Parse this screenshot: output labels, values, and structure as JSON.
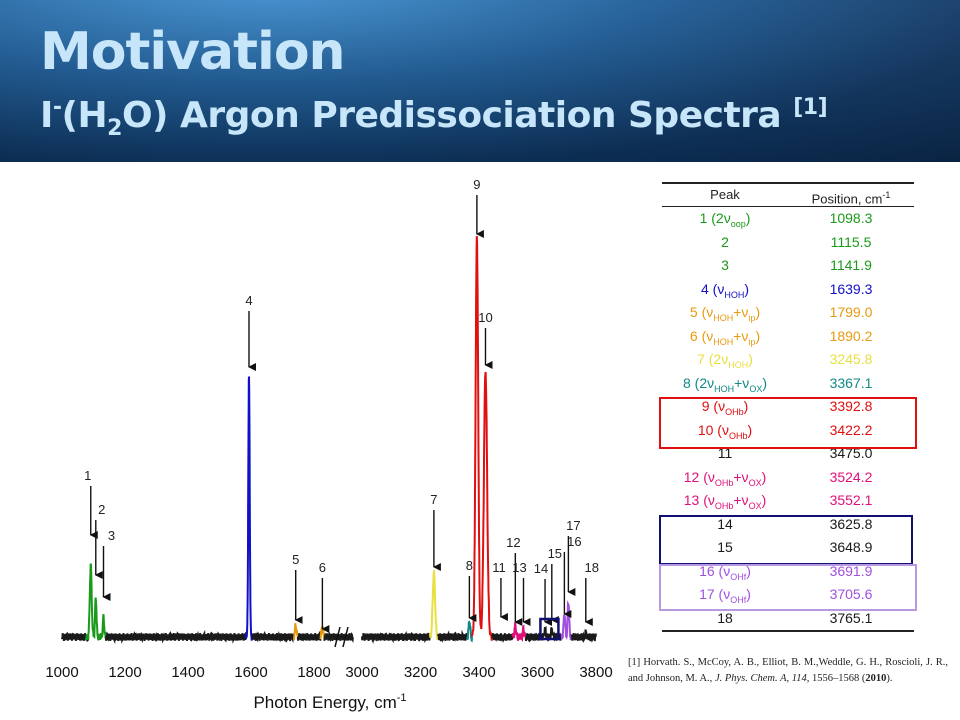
{
  "header": {
    "title": "Motivation",
    "subtitle_ion": "I",
    "subtitle_charge": "-",
    "subtitle_paren_open": "(H",
    "subtitle_sub": "2",
    "subtitle_paren_close": "O) Argon Predissociation Spectra ",
    "subtitle_ref": "[1]"
  },
  "colors": {
    "header_bg": "#1c5b96",
    "title_text": "#c8e6fa",
    "green": "#1a9a1a",
    "blue": "#1010c8",
    "orange": "#e89a10",
    "yellow": "#e8e040",
    "teal": "#118888",
    "red": "#e01010",
    "pink": "#e0107a",
    "purple": "#a050e0",
    "navy": "#101070",
    "black": "#1a1a1a"
  },
  "table": {
    "header": [
      "Peak",
      "Position, cm"
    ],
    "header_sup": "-1",
    "rows": [
      {
        "peak": "1 (2ν",
        "sub": "oop",
        "tail": ")",
        "pos": "1098.3",
        "color": "#1a9a1a"
      },
      {
        "peak": "2",
        "sub": "",
        "tail": "",
        "pos": "1115.5",
        "color": "#1a9a1a"
      },
      {
        "peak": "3",
        "sub": "",
        "tail": "",
        "pos": "1141.9",
        "color": "#1a9a1a"
      },
      {
        "peak": "4 (ν",
        "sub": "HOH",
        "tail": ")",
        "pos": "1639.3",
        "color": "#1010c8"
      },
      {
        "peak": "5 (ν",
        "sub": "HOH",
        "tail": "+ν",
        "sub2": "ip",
        "tail2": ")",
        "pos": "1799.0",
        "color": "#e89a10"
      },
      {
        "peak": "6 (ν",
        "sub": "HOH",
        "tail": "+ν",
        "sub2": "ip",
        "tail2": ")",
        "pos": "1890.2",
        "color": "#e89a10"
      },
      {
        "peak": "7 (2ν",
        "sub": "HOH",
        "tail": ")",
        "pos": "3245.8",
        "color": "#e8e040"
      },
      {
        "peak": "8 (2ν",
        "sub": "HOH",
        "tail": "+ν",
        "sub2": "OX",
        "tail2": ")",
        "pos": "3367.1",
        "color": "#118888"
      },
      {
        "peak": "9 (ν",
        "sub": "OHb",
        "tail": ")",
        "pos": "3392.8",
        "color": "#e01010"
      },
      {
        "peak": "10 (ν",
        "sub": "OHb",
        "tail": ")",
        "pos": "3422.2",
        "color": "#e01010"
      },
      {
        "peak": "11",
        "sub": "",
        "tail": "",
        "pos": "3475.0",
        "color": "#1a1a1a"
      },
      {
        "peak": "12 (ν",
        "sub": "OHb",
        "tail": "+ν",
        "sub2": "OX",
        "tail2": ")",
        "pos": "3524.2",
        "color": "#e0107a"
      },
      {
        "peak": "13 (ν",
        "sub": "OHb",
        "tail": "+ν",
        "sub2": "OX",
        "tail2": ")",
        "pos": "3552.1",
        "color": "#e0107a"
      },
      {
        "peak": "14",
        "sub": "",
        "tail": "",
        "pos": "3625.8",
        "color": "#1a1a1a"
      },
      {
        "peak": "15",
        "sub": "",
        "tail": "",
        "pos": "3648.9",
        "color": "#1a1a1a"
      },
      {
        "peak": "16 (ν",
        "sub": "OHf",
        "tail": ")",
        "pos": "3691.9",
        "color": "#a050e0"
      },
      {
        "peak": "17 (ν",
        "sub": "OHf",
        "tail": ")",
        "pos": "3705.6",
        "color": "#a050e0"
      },
      {
        "peak": "18",
        "sub": "",
        "tail": "",
        "pos": "3765.1",
        "color": "#1a1a1a"
      }
    ]
  },
  "chart_data": {
    "type": "line",
    "xlabel": "Photon Energy, cm",
    "xlabel_sup": "-1",
    "x_ticks_left": [
      1000,
      1200,
      1400,
      1600,
      1800
    ],
    "x_ticks_right": [
      3000,
      3200,
      3400,
      3600,
      3800
    ],
    "xlim_left": [
      1000,
      1900
    ],
    "xlim_right": [
      3000,
      3800
    ],
    "axis_break": true,
    "peaks": [
      {
        "label": "1",
        "x": 1098.3,
        "height": 0.18,
        "color": "#1a9a1a"
      },
      {
        "label": "2",
        "x": 1115.5,
        "height": 0.1,
        "color": "#1a9a1a"
      },
      {
        "label": "3",
        "x": 1141.9,
        "height": 0.05,
        "color": "#1a9a1a"
      },
      {
        "label": "4",
        "x": 1639.3,
        "height": 0.65,
        "color": "#1010c8"
      },
      {
        "label": "5",
        "x": 1799.0,
        "height": 0.03,
        "color": "#e89a10"
      },
      {
        "label": "6",
        "x": 1890.2,
        "height": 0.02,
        "color": "#e89a10"
      },
      {
        "label": "7",
        "x": 3245.8,
        "height": 0.16,
        "color": "#e8e040"
      },
      {
        "label": "8",
        "x": 3367.1,
        "height": 0.04,
        "color": "#118888"
      },
      {
        "label": "9",
        "x": 3392.8,
        "height": 1.0,
        "color": "#e01010"
      },
      {
        "label": "10",
        "x": 3422.2,
        "height": 0.67,
        "color": "#e01010"
      },
      {
        "label": "11",
        "x": 3475.0,
        "height": 0.02,
        "color": "#1a1a1a"
      },
      {
        "label": "12",
        "x": 3524.2,
        "height": 0.03,
        "color": "#e0107a"
      },
      {
        "label": "13",
        "x": 3552.1,
        "height": 0.02,
        "color": "#e0107a"
      },
      {
        "label": "14",
        "x": 3625.8,
        "height": 0.02,
        "color": "#1a1a1a"
      },
      {
        "label": "15",
        "x": 3648.9,
        "height": 0.02,
        "color": "#1a1a1a"
      },
      {
        "label": "16",
        "x": 3691.9,
        "height": 0.06,
        "color": "#a050e0"
      },
      {
        "label": "17",
        "x": 3705.6,
        "height": 0.09,
        "color": "#a050e0"
      },
      {
        "label": "18",
        "x": 3765.1,
        "height": 0.01,
        "color": "#1a1a1a"
      }
    ]
  },
  "reference": {
    "label": "[1] Horvath. S., McCoy, A. B., Elliot, B. M.,Weddle, G. H., Roscioli, J. R., and Johnson, M. A., ",
    "journal": "J. Phys. Chem. A, 114,",
    "pages": " 1556–1568 (",
    "year": "2010",
    "close": ")."
  }
}
